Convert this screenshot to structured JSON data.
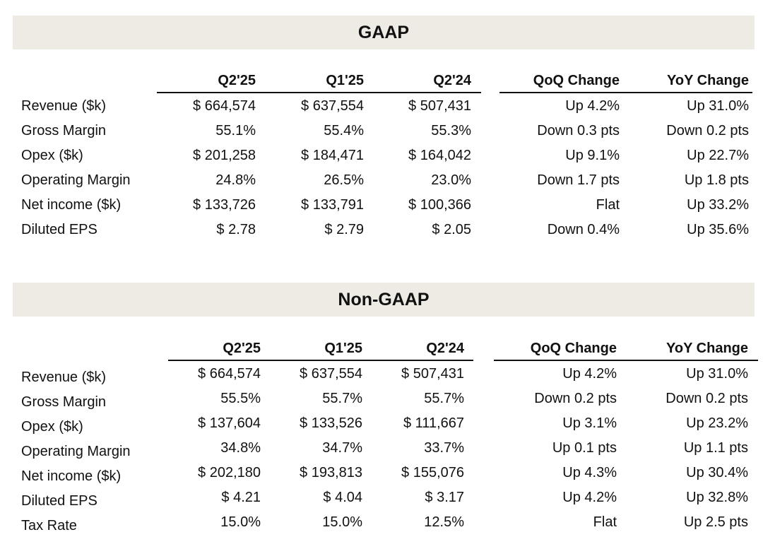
{
  "columns": [
    "Q2'25",
    "Q1'25",
    "Q2'24",
    "QoQ Change",
    "YoY Change"
  ],
  "gaap": {
    "title": "GAAP",
    "rows": [
      {
        "label": "Revenue ($k)",
        "values": [
          "$ 664,574",
          "$ 637,554",
          "$ 507,431",
          "Up 4.2%",
          "Up 31.0%"
        ]
      },
      {
        "label": "Gross Margin",
        "values": [
          "55.1%",
          "55.4%",
          "55.3%",
          "Down 0.3 pts",
          "Down 0.2 pts"
        ]
      },
      {
        "label": "Opex ($k)",
        "values": [
          "$ 201,258",
          "$ 184,471",
          "$ 164,042",
          "Up 9.1%",
          "Up 22.7%"
        ]
      },
      {
        "label": "Operating Margin",
        "values": [
          "24.8%",
          "26.5%",
          "23.0%",
          "Down 1.7 pts",
          "Up 1.8 pts"
        ]
      },
      {
        "label": "Net income ($k)",
        "values": [
          "$ 133,726",
          "$ 133,791",
          "$ 100,366",
          "Flat",
          "Up 33.2%"
        ]
      },
      {
        "label": "Diluted EPS",
        "values": [
          "$ 2.78",
          "$ 2.79",
          "$ 2.05",
          "Down 0.4%",
          "Up 35.6%"
        ]
      }
    ]
  },
  "nongaap": {
    "title": "Non-GAAP",
    "rows": [
      {
        "label": "Revenue ($k)",
        "values": [
          "$ 664,574",
          "$ 637,554",
          "$ 507,431",
          "Up 4.2%",
          "Up 31.0%"
        ]
      },
      {
        "label": "Gross Margin",
        "values": [
          "55.5%",
          "55.7%",
          "55.7%",
          "Down 0.2 pts",
          "Down 0.2 pts"
        ]
      },
      {
        "label": "Opex ($k)",
        "values": [
          "$ 137,604",
          "$ 133,526",
          "$ 111,667",
          "Up 3.1%",
          "Up 23.2%"
        ]
      },
      {
        "label": "Operating Margin",
        "values": [
          "34.8%",
          "34.7%",
          "33.7%",
          "Up 0.1 pts",
          "Up 1.1 pts"
        ]
      },
      {
        "label": "Net income ($k)",
        "values": [
          "$ 202,180",
          "$ 193,813",
          "$ 155,076",
          "Up 4.3%",
          "Up 30.4%"
        ]
      },
      {
        "label": "Diluted EPS",
        "values": [
          "$ 4.21",
          "$ 4.04",
          "$ 3.17",
          "Up 4.2%",
          "Up 32.8%"
        ]
      },
      {
        "label": "Tax Rate",
        "values": [
          "15.0%",
          "15.0%",
          "12.5%",
          "Flat",
          "Up 2.5 pts"
        ]
      }
    ]
  }
}
